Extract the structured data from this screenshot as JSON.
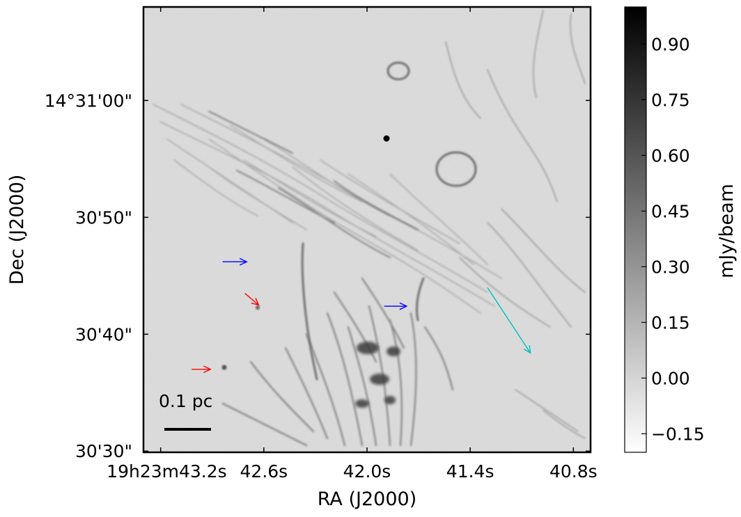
{
  "chart_data": {
    "type": "heatmap",
    "title": "",
    "xlabel": "RA (J2000)",
    "ylabel": "Dec (J2000)",
    "x_ticks": [
      "19h23m43.2s",
      "42.6s",
      "42.0s",
      "41.4s",
      "40.8s"
    ],
    "x_tick_values_s": [
      43.2,
      42.6,
      42.0,
      41.4,
      40.8
    ],
    "x_range_s": [
      43.3,
      40.7
    ],
    "y_ticks": [
      "14°31'00\"",
      "30'50\"",
      "30'40\"",
      "30'30\""
    ],
    "y_tick_values_arcsec": [
      60,
      50,
      40,
      30
    ],
    "y_range_arcsec": [
      29.9,
      68.0
    ],
    "colorbar": {
      "label": "mJy/beam",
      "ticks": [
        "0.90",
        "0.75",
        "0.60",
        "0.45",
        "0.30",
        "0.15",
        "0.00",
        "−0.15"
      ],
      "tick_values": [
        0.9,
        0.75,
        0.6,
        0.45,
        0.3,
        0.15,
        0.0,
        -0.15
      ],
      "range": [
        -0.2,
        1.0
      ],
      "colormap": "gray_r"
    },
    "scale_bar_label": "0.1 pc",
    "arrows": [
      {
        "color": "#0000ff",
        "from": [
          42.84,
          46.2
        ],
        "to": [
          42.7,
          46.2
        ]
      },
      {
        "color": "#0000ff",
        "from": [
          41.9,
          42.4
        ],
        "to": [
          41.77,
          42.4
        ]
      },
      {
        "color": "#ff0000",
        "from": [
          42.71,
          43.5
        ],
        "to": [
          42.63,
          42.5
        ]
      },
      {
        "color": "#ff0000",
        "from": [
          43.02,
          37.0
        ],
        "to": [
          42.91,
          37.0
        ]
      },
      {
        "color": "#00bfbf",
        "from": [
          41.3,
          44.0
        ],
        "to": [
          41.05,
          38.4
        ]
      }
    ]
  }
}
